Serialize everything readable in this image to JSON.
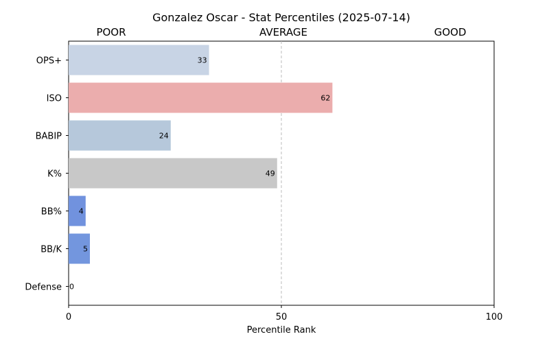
{
  "chart_data": {
    "type": "bar",
    "orientation": "horizontal",
    "title": "Gonzalez Oscar - Stat Percentiles (2025-07-14)",
    "xlabel": "Percentile Rank",
    "ylabel": "",
    "xlim": [
      0,
      100
    ],
    "xticks": [
      0,
      50,
      100
    ],
    "reference_line": 50,
    "grid": false,
    "zones": [
      "POOR",
      "AVERAGE",
      "GOOD"
    ],
    "categories": [
      "OPS+",
      "ISO",
      "BABIP",
      "K%",
      "BB%",
      "BB/K",
      "Defense"
    ],
    "values": [
      33,
      62,
      24,
      49,
      4,
      5,
      0
    ],
    "colors": [
      "#c8d4e5",
      "#ebadad",
      "#b6c8db",
      "#c8c8c8",
      "#7192de",
      "#7396de",
      "#4a73d6"
    ]
  }
}
